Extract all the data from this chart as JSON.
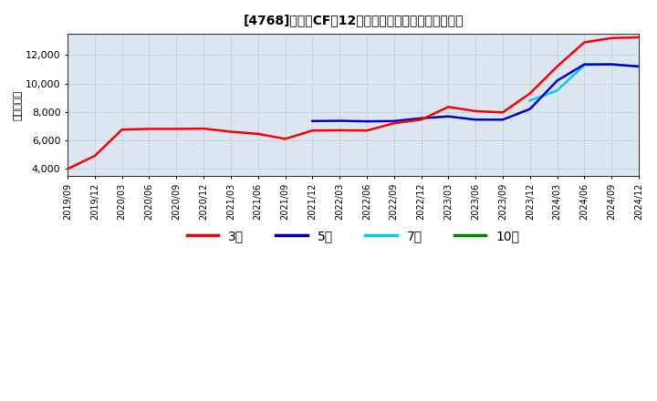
{
  "title": "[4768]　営業CFの12か月移動合計の標準偏差の推移",
  "ylabel": "（百万円）",
  "ylim": [
    3500,
    13500
  ],
  "yticks": [
    4000,
    6000,
    8000,
    10000,
    12000
  ],
  "background_color": "#ffffff",
  "plot_bg_color": "#dce6f0",
  "grid_color": "#aaaaaa",
  "legend_entries": [
    "3年",
    "5年",
    "7年",
    "10年"
  ],
  "legend_colors": [
    "#ff0000",
    "#0000cc",
    "#00ccff",
    "#008800"
  ],
  "x_tick_labels": [
    "2019/09",
    "2019/12",
    "2020/03",
    "2020/06",
    "2020/09",
    "2020/12",
    "2021/03",
    "2021/06",
    "2021/09",
    "2021/12",
    "2022/03",
    "2022/06",
    "2022/09",
    "2022/12",
    "2023/03",
    "2023/06",
    "2023/09",
    "2023/12",
    "2024/03",
    "2024/06",
    "2024/09",
    "2024/12"
  ],
  "dates_3y": [
    "2019/09",
    "2019/12",
    "2020/03",
    "2020/06",
    "2020/09",
    "2020/12",
    "2021/03",
    "2021/06",
    "2021/09",
    "2021/12",
    "2022/03",
    "2022/06",
    "2022/09",
    "2022/12",
    "2023/03",
    "2023/06",
    "2023/09",
    "2023/12",
    "2024/03",
    "2024/06",
    "2024/09",
    "2024/12"
  ],
  "values_3y": [
    3980,
    4900,
    6750,
    6800,
    6800,
    6820,
    6600,
    6450,
    6100,
    6680,
    6700,
    6680,
    7200,
    7450,
    8350,
    8050,
    7960,
    9300,
    11200,
    12900,
    13200,
    13250
  ],
  "dates_5y": [
    "2021/12",
    "2022/03",
    "2022/06",
    "2022/09",
    "2022/12",
    "2023/03",
    "2023/06",
    "2023/09",
    "2023/12",
    "2024/03",
    "2024/06",
    "2024/09",
    "2024/12"
  ],
  "values_5y": [
    7350,
    7370,
    7330,
    7350,
    7550,
    7680,
    7450,
    7450,
    8200,
    10200,
    11350,
    11350,
    11200
  ],
  "dates_7y": [
    "2023/12",
    "2024/03",
    "2024/06",
    "2024/09",
    "2024/12"
  ],
  "values_7y": [
    8800,
    9500,
    11300,
    11350,
    11200
  ],
  "dates_10y": [],
  "values_10y": [],
  "xlim_start": "2019/09",
  "xlim_end": "2024/12"
}
